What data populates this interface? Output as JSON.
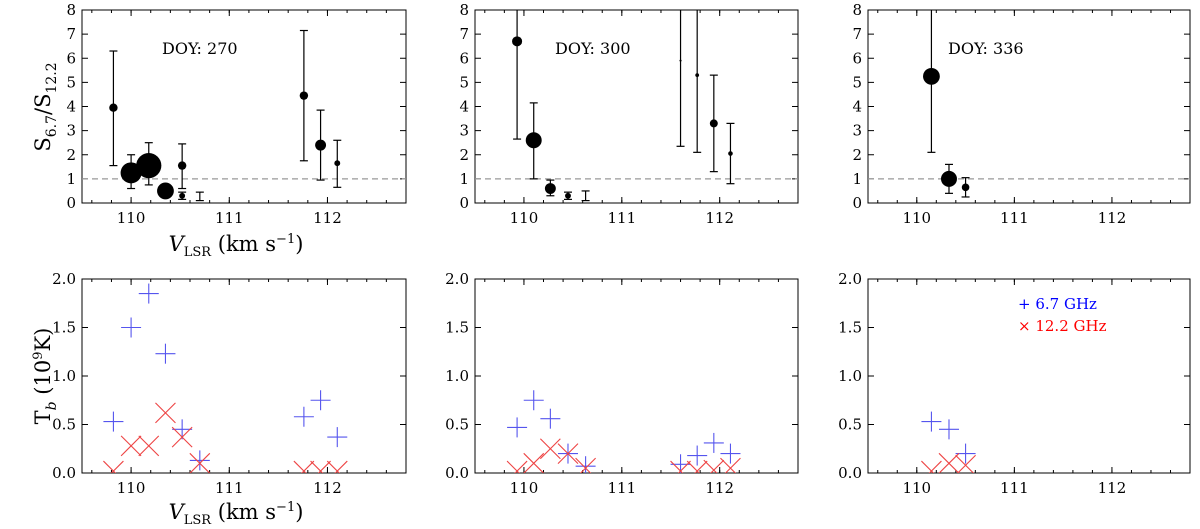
{
  "colors": {
    "plus": "#5555ee",
    "cross": "#ee4444",
    "legend_blue": "#0000ff",
    "legend_red": "#ff0000",
    "refline": "#999999",
    "axes": "#000000"
  },
  "labels": {
    "ratio_ylabel_main": "S",
    "ratio_ylabel_sub1": "6.7",
    "ratio_ylabel_sep": "/S",
    "ratio_ylabel_sub2": "12.2",
    "x_label_main": "V",
    "x_label_sub": "LSR",
    "x_label_unit": " (km s",
    "x_label_exp": "−1",
    "x_label_close": ")",
    "tb_ylabel_main": "T",
    "tb_ylabel_sub": "b",
    "tb_ylabel_unit": " (10",
    "tb_ylabel_exp": "9",
    "tb_ylabel_close": "K)"
  },
  "legend": [
    {
      "marker": "+",
      "label": "6.7 GHz"
    },
    {
      "marker": "×",
      "label": "12.2 GHz"
    }
  ],
  "chart_data": [
    {
      "type": "scatter",
      "panel": "ratio",
      "annotation": "DOY: 270",
      "xlim": [
        109.5,
        112.8
      ],
      "ylim": [
        0,
        8
      ],
      "xticks": [
        110,
        111,
        112
      ],
      "yticks": [
        0,
        1,
        2,
        3,
        4,
        5,
        6,
        7,
        8
      ],
      "reference_line": 1,
      "points": [
        {
          "x": 109.82,
          "y": 3.95,
          "lo": 1.55,
          "hi": 6.3,
          "size": 2
        },
        {
          "x": 110.0,
          "y": 1.25,
          "lo": 0.6,
          "hi": 2.0,
          "size": 5
        },
        {
          "x": 110.18,
          "y": 1.55,
          "lo": 0.75,
          "hi": 2.5,
          "size": 6
        },
        {
          "x": 110.35,
          "y": 0.5,
          "lo": 0.35,
          "hi": 0.75,
          "size": 4
        },
        {
          "x": 110.52,
          "y": 1.55,
          "lo": 0.6,
          "hi": 2.45,
          "size": 2
        },
        {
          "x": 110.52,
          "y": 0.3,
          "lo": 0.15,
          "hi": 0.45,
          "size": 1.4
        },
        {
          "x": 110.7,
          "y": 0.3,
          "lo": 0.1,
          "hi": 0.45,
          "size": 0
        },
        {
          "x": 111.76,
          "y": 4.45,
          "lo": 1.75,
          "hi": 7.15,
          "size": 2
        },
        {
          "x": 111.93,
          "y": 2.4,
          "lo": 0.95,
          "hi": 3.85,
          "size": 2.6
        },
        {
          "x": 112.1,
          "y": 1.65,
          "lo": 0.65,
          "hi": 2.6,
          "size": 1.4
        }
      ]
    },
    {
      "type": "scatter",
      "panel": "ratio",
      "annotation": "DOY: 300",
      "xlim": [
        109.5,
        112.8
      ],
      "ylim": [
        0,
        8
      ],
      "xticks": [
        110,
        111,
        112
      ],
      "yticks": [
        0,
        1,
        2,
        3,
        4,
        5,
        6,
        7,
        8
      ],
      "reference_line": 1,
      "points": [
        {
          "x": 109.93,
          "y": 6.7,
          "lo": 2.65,
          "hi": 8.3,
          "size": 2.4
        },
        {
          "x": 110.1,
          "y": 2.6,
          "lo": 1.0,
          "hi": 4.15,
          "size": 3.8
        },
        {
          "x": 110.27,
          "y": 0.6,
          "lo": 0.3,
          "hi": 0.95,
          "size": 2.6
        },
        {
          "x": 110.45,
          "y": 0.3,
          "lo": 0.15,
          "hi": 0.45,
          "size": 1.4
        },
        {
          "x": 110.63,
          "y": 0.3,
          "lo": 0.1,
          "hi": 0.5,
          "size": 0
        },
        {
          "x": 111.6,
          "y": 5.9,
          "lo": 2.35,
          "hi": 8.3,
          "size": 0.5
        },
        {
          "x": 111.77,
          "y": 5.3,
          "lo": 2.1,
          "hi": 8.3,
          "size": 0.9
        },
        {
          "x": 111.94,
          "y": 3.3,
          "lo": 1.3,
          "hi": 5.3,
          "size": 1.9
        },
        {
          "x": 112.11,
          "y": 2.05,
          "lo": 0.8,
          "hi": 3.3,
          "size": 1.1
        }
      ]
    },
    {
      "type": "scatter",
      "panel": "ratio",
      "annotation": "DOY: 336",
      "xlim": [
        109.5,
        112.8
      ],
      "ylim": [
        0,
        8
      ],
      "xticks": [
        110,
        111,
        112
      ],
      "yticks": [
        0,
        1,
        2,
        3,
        4,
        5,
        6,
        7,
        8
      ],
      "reference_line": 1,
      "points": [
        {
          "x": 110.15,
          "y": 5.25,
          "lo": 2.1,
          "hi": 8.3,
          "size": 4
        },
        {
          "x": 110.33,
          "y": 1.0,
          "lo": 0.4,
          "hi": 1.6,
          "size": 3.8
        },
        {
          "x": 110.5,
          "y": 0.65,
          "lo": 0.25,
          "hi": 1.05,
          "size": 1.8
        }
      ]
    },
    {
      "type": "scatter",
      "panel": "tb",
      "xlim": [
        109.5,
        112.8
      ],
      "ylim": [
        0,
        2.0
      ],
      "xticks": [
        110,
        111,
        112
      ],
      "yticks": [
        0.0,
        0.5,
        1.0,
        1.5,
        2.0
      ],
      "series": [
        {
          "name": "6.7 GHz",
          "marker": "plus",
          "x": [
            109.82,
            110.0,
            110.18,
            110.35,
            110.52,
            110.7,
            111.76,
            111.93,
            112.1
          ],
          "y": [
            0.53,
            1.5,
            1.85,
            1.23,
            0.45,
            0.13,
            0.58,
            0.75,
            0.37
          ]
        },
        {
          "name": "12.2 GHz",
          "marker": "cross",
          "x": [
            109.82,
            110.0,
            110.18,
            110.35,
            110.52,
            110.7,
            111.76,
            111.93,
            112.1
          ],
          "y": [
            0.02,
            0.28,
            0.28,
            0.62,
            0.37,
            0.1,
            0.02,
            0.02,
            0.02
          ]
        }
      ]
    },
    {
      "type": "scatter",
      "panel": "tb",
      "xlim": [
        109.5,
        112.8
      ],
      "ylim": [
        0,
        2.0
      ],
      "xticks": [
        110,
        111,
        112
      ],
      "yticks": [
        0.0,
        0.5,
        1.0,
        1.5,
        2.0
      ],
      "series": [
        {
          "name": "6.7 GHz",
          "marker": "plus",
          "x": [
            109.93,
            110.1,
            110.27,
            110.45,
            110.63,
            111.6,
            111.77,
            111.94,
            112.11
          ],
          "y": [
            0.47,
            0.75,
            0.56,
            0.2,
            0.07,
            0.09,
            0.18,
            0.31,
            0.2
          ]
        },
        {
          "name": "12.2 GHz",
          "marker": "cross",
          "x": [
            109.93,
            110.1,
            110.27,
            110.45,
            110.63,
            111.6,
            111.77,
            111.94,
            112.11
          ],
          "y": [
            0.02,
            0.1,
            0.25,
            0.2,
            0.05,
            0.02,
            0.02,
            0.03,
            0.05
          ]
        }
      ]
    },
    {
      "type": "scatter",
      "panel": "tb",
      "xlim": [
        109.5,
        112.8
      ],
      "ylim": [
        0,
        2.0
      ],
      "xticks": [
        110,
        111,
        112
      ],
      "yticks": [
        0.0,
        0.5,
        1.0,
        1.5,
        2.0
      ],
      "series": [
        {
          "name": "6.7 GHz",
          "marker": "plus",
          "x": [
            110.15,
            110.33,
            110.5
          ],
          "y": [
            0.53,
            0.45,
            0.2
          ]
        },
        {
          "name": "12.2 GHz",
          "marker": "cross",
          "x": [
            110.15,
            110.33,
            110.5
          ],
          "y": [
            0.02,
            0.1,
            0.08
          ]
        }
      ]
    }
  ]
}
